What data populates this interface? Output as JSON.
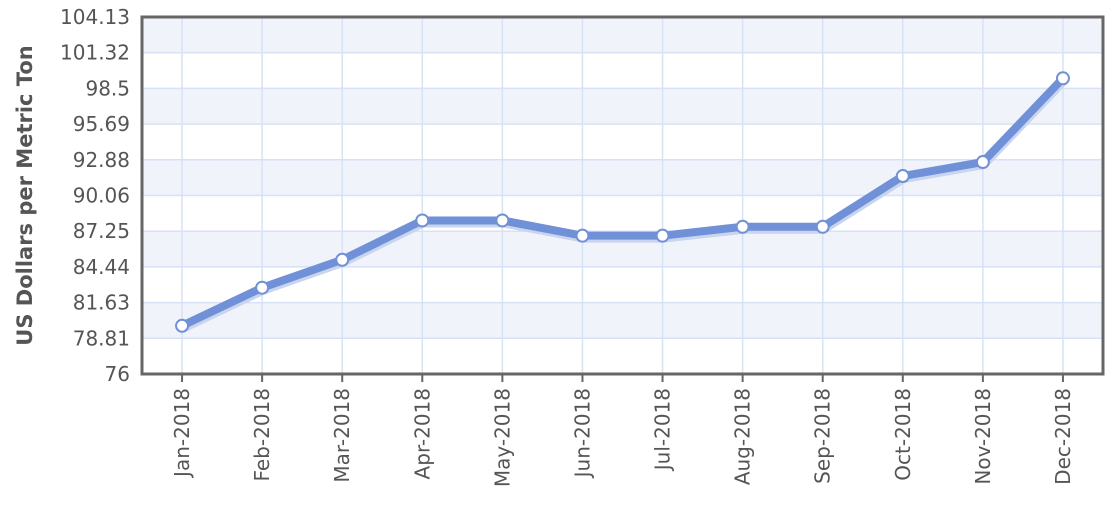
{
  "chart_data": {
    "type": "line",
    "ylabel": "US Dollars per Metric Ton",
    "xlabel": "",
    "title": "",
    "categories": [
      "Jan-2018",
      "Feb-2018",
      "Mar-2018",
      "Apr-2018",
      "May-2018",
      "Jun-2018",
      "Jul-2018",
      "Aug-2018",
      "Sep-2018",
      "Oct-2018",
      "Nov-2018",
      "Dec-2018"
    ],
    "series": [
      {
        "values": [
          79.8,
          82.8,
          85.0,
          88.1,
          88.1,
          86.9,
          86.9,
          87.6,
          87.6,
          91.6,
          92.7,
          99.3
        ]
      }
    ],
    "yticks": [
      "76",
      "78.81",
      "81.63",
      "84.44",
      "87.25",
      "90.06",
      "92.88",
      "95.69",
      "98.5",
      "101.32",
      "104.13"
    ],
    "ylim": [
      76,
      104.13
    ],
    "grid": true,
    "colors": {
      "line": "#7090d8",
      "marker_fill": "#ffffff",
      "marker_stroke": "#7090d8",
      "band": "#f1f3fb",
      "grid": "#d7e2f5",
      "frame": "#666666"
    }
  }
}
